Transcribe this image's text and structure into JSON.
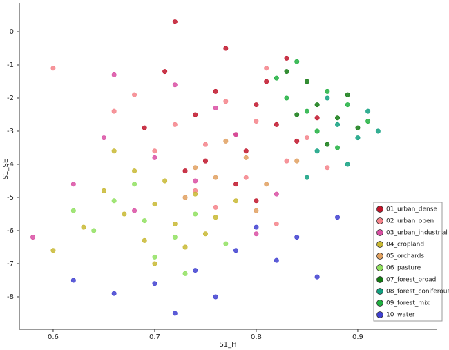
{
  "chart_data": {
    "type": "scatter",
    "x_label": "S1_H",
    "y_label": "S1_SE",
    "xlim": [
      0.5667,
      0.9776
    ],
    "ylim": [
      -8.98,
      0.854
    ],
    "xticks": [
      0.6,
      0.7,
      0.8,
      0.9
    ],
    "yticks": [
      0,
      -1,
      -2,
      -3,
      -4,
      -5,
      -6,
      -7,
      -8
    ],
    "legend": "lower right",
    "series": [
      {
        "name": "01_urban_dense",
        "color": "#c0142a",
        "x": [
          0.74,
          0.78,
          0.8,
          0.82,
          0.76,
          0.79,
          0.84,
          0.71,
          0.77,
          0.81,
          0.73,
          0.86,
          0.75,
          0.83,
          0.69,
          0.8,
          0.78,
          0.72
        ],
        "values": [
          -2.5,
          -3.1,
          -2.2,
          -2.8,
          -1.8,
          -3.6,
          -3.3,
          -1.2,
          -0.5,
          -1.5,
          -4.2,
          -2.6,
          -3.9,
          -0.8,
          -2.9,
          -5.1,
          -4.6,
          0.3
        ]
      },
      {
        "name": "02_urban_open",
        "color": "#f4838a",
        "x": [
          0.75,
          0.8,
          0.83,
          0.77,
          0.72,
          0.85,
          0.79,
          0.68,
          0.81,
          0.74,
          0.87,
          0.7,
          0.76,
          0.82,
          0.6,
          0.66
        ],
        "values": [
          -3.4,
          -2.7,
          -3.9,
          -2.1,
          -2.8,
          -3.2,
          -4.4,
          -1.9,
          -1.1,
          -4.8,
          -4.1,
          -3.6,
          -5.3,
          -5.8,
          -1.1,
          -2.4
        ]
      },
      {
        "name": "03_urban_industrial",
        "color": "#d94fa3",
        "x": [
          0.7,
          0.74,
          0.65,
          0.78,
          0.62,
          0.82,
          0.68,
          0.76,
          0.72,
          0.58,
          0.8,
          0.66
        ],
        "values": [
          -3.8,
          -4.5,
          -3.2,
          -3.1,
          -4.6,
          -4.9,
          -5.4,
          -2.3,
          -1.6,
          -6.2,
          -6.1,
          -1.3
        ]
      },
      {
        "name": "04_cropland",
        "color": "#c8b832",
        "x": [
          0.7,
          0.72,
          0.67,
          0.74,
          0.69,
          0.65,
          0.76,
          0.71,
          0.63,
          0.73,
          0.68,
          0.78,
          0.6,
          0.75,
          0.66,
          0.7
        ],
        "values": [
          -5.2,
          -5.8,
          -5.5,
          -4.9,
          -6.3,
          -4.8,
          -5.6,
          -4.5,
          -5.9,
          -6.5,
          -4.2,
          -5.1,
          -6.6,
          -6.1,
          -3.6,
          -7.0
        ]
      },
      {
        "name": "05_orchards",
        "color": "#e0a060",
        "x": [
          0.76,
          0.79,
          0.73,
          0.81,
          0.77,
          0.84,
          0.74,
          0.8
        ],
        "values": [
          -4.4,
          -3.8,
          -5.0,
          -4.6,
          -3.3,
          -3.9,
          -4.1,
          -5.4
        ]
      },
      {
        "name": "06_pasture",
        "color": "#90e060",
        "x": [
          0.69,
          0.72,
          0.66,
          0.74,
          0.7,
          0.64,
          0.77,
          0.68,
          0.62,
          0.73
        ],
        "values": [
          -5.7,
          -6.2,
          -5.1,
          -5.5,
          -6.8,
          -6.0,
          -6.4,
          -4.6,
          -5.4,
          -7.3
        ]
      },
      {
        "name": "07_forest_broad",
        "color": "#127a12",
        "x": [
          0.86,
          0.88,
          0.85,
          0.9,
          0.87,
          0.84,
          0.89,
          0.83
        ],
        "values": [
          -2.2,
          -2.6,
          -1.5,
          -2.9,
          -3.4,
          -2.5,
          -1.9,
          -1.2
        ]
      },
      {
        "name": "08_forest_coniferous",
        "color": "#10a080",
        "x": [
          0.88,
          0.9,
          0.86,
          0.91,
          0.87,
          0.89,
          0.92,
          0.85
        ],
        "values": [
          -2.8,
          -3.2,
          -3.6,
          -2.4,
          -2.0,
          -4.0,
          -3.0,
          -4.4
        ]
      },
      {
        "name": "09_forest_mix",
        "color": "#20b040",
        "x": [
          0.85,
          0.87,
          0.83,
          0.89,
          0.86,
          0.88,
          0.84,
          0.91,
          0.82
        ],
        "values": [
          -2.4,
          -1.8,
          -2.0,
          -2.2,
          -3.0,
          -3.5,
          -0.9,
          -2.7,
          -1.4
        ]
      },
      {
        "name": "10_water",
        "color": "#4040d0",
        "x": [
          0.78,
          0.74,
          0.82,
          0.7,
          0.86,
          0.76,
          0.8,
          0.66,
          0.84,
          0.72,
          0.62,
          0.88
        ],
        "values": [
          -6.6,
          -7.2,
          -6.9,
          -7.6,
          -7.4,
          -8.0,
          -5.9,
          -7.9,
          -6.2,
          -8.5,
          -7.5,
          -5.6
        ]
      }
    ]
  }
}
